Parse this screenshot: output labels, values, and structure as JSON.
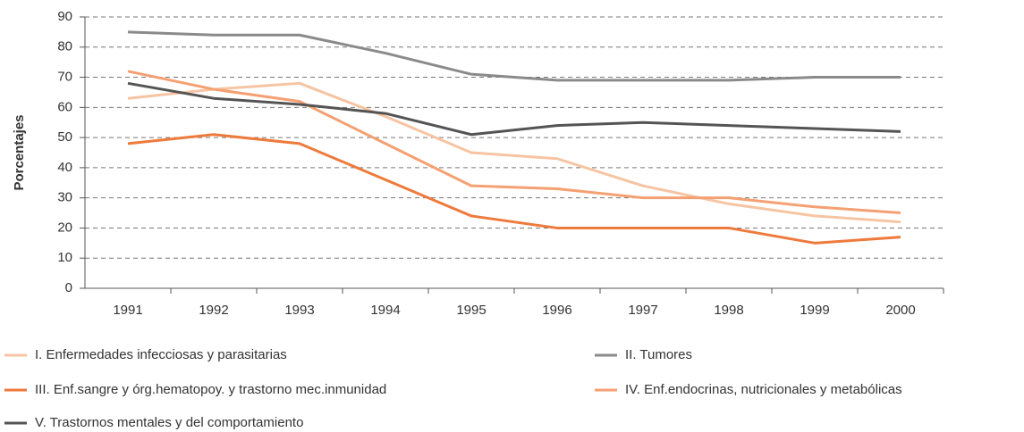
{
  "chart_data": {
    "type": "line",
    "y_label": "Porcentajes",
    "categories": [
      "1991",
      "1992",
      "1993",
      "1994",
      "1995",
      "1996",
      "1997",
      "1998",
      "1999",
      "2000"
    ],
    "series": [
      {
        "name": "I. Enfermedades infecciosas y parasitarias",
        "color": "#f6c4a2",
        "values": [
          63,
          66,
          68,
          57,
          45,
          43,
          34,
          28,
          24,
          22
        ]
      },
      {
        "name": "II. Tumores",
        "color": "#8a8a8a",
        "values": [
          85,
          84,
          84,
          78,
          71,
          69,
          69,
          69,
          70,
          70
        ]
      },
      {
        "name": "III. Enf.sangre y órg.hematopoy. y trastorno mec.inmunidad",
        "color": "#ee7a3c",
        "values": [
          48,
          51,
          48,
          36,
          24,
          20,
          20,
          20,
          15,
          17
        ]
      },
      {
        "name": "IV. Enf.endocrinas, nutricionales y metabólicas",
        "color": "#f4a072",
        "values": [
          72,
          66,
          62,
          48,
          34,
          33,
          30,
          30,
          27,
          25
        ]
      },
      {
        "name": "V. Trastornos mentales y del comportamiento",
        "color": "#545454",
        "values": [
          68,
          63,
          61,
          58,
          51,
          54,
          55,
          54,
          53,
          52
        ]
      }
    ],
    "ylim": [
      0,
      90
    ],
    "yticks": [
      0,
      10,
      20,
      30,
      40,
      50,
      60,
      70,
      80,
      90
    ],
    "grid": true
  }
}
